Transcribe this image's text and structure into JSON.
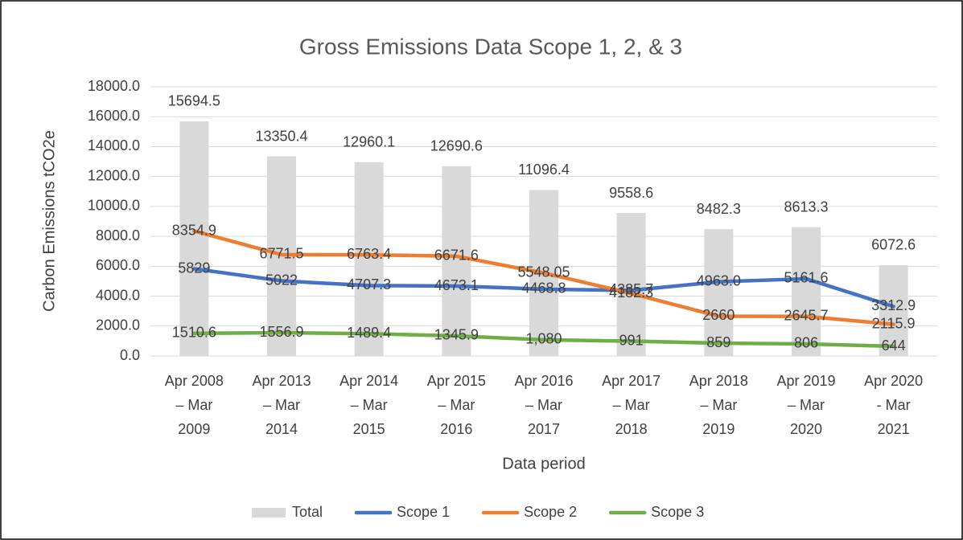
{
  "chart_data": {
    "type": "combo",
    "title": "Gross Emissions Data Scope 1, 2, & 3",
    "y_label": "Carbon Emissions tCO2e",
    "x_label": "Data period",
    "categories": [
      [
        "Apr 2008",
        "– Mar",
        "2009"
      ],
      [
        "Apr 2013",
        "– Mar",
        "2014"
      ],
      [
        "Apr 2014",
        "– Mar",
        "2015"
      ],
      [
        "Apr 2015",
        "– Mar",
        "2016"
      ],
      [
        "Apr 2016",
        "– Mar",
        "2017"
      ],
      [
        "Apr 2017",
        "– Mar",
        "2018"
      ],
      [
        "Apr 2018",
        "– Mar",
        "2019"
      ],
      [
        "Apr 2019",
        "– Mar",
        "2020"
      ],
      [
        "Apr 2020",
        "- Mar",
        "2021"
      ]
    ],
    "series": [
      {
        "name": "Total",
        "type": "bar",
        "color": "#d9d9d9",
        "values": [
          15694.5,
          13350.4,
          12960.1,
          12690.6,
          11096.4,
          9558.6,
          8482.3,
          8613.3,
          6072.6
        ],
        "value_labels": [
          "15694.5",
          "13350.4",
          "12960.1",
          "12690.6",
          "11096.4",
          "9558.6",
          "8482.3",
          "8613.3",
          "6072.6"
        ]
      },
      {
        "name": "Scope 1",
        "type": "line",
        "color": "#4472c4",
        "values": [
          5829,
          5022,
          4707.3,
          4673.1,
          4468.8,
          4385.7,
          4963.0,
          5161.6,
          3312.9
        ],
        "value_labels": [
          "5829",
          "5022",
          "4707.3",
          "4673.1",
          "4468.8",
          "4385.7",
          "4963.0",
          "5161.6",
          "3312.9"
        ]
      },
      {
        "name": "Scope 2",
        "type": "line",
        "color": "#ed7d31",
        "values": [
          8354.9,
          6771.5,
          6763.4,
          6671.6,
          5548.05,
          4182.3,
          2660,
          2645.7,
          2115.9
        ],
        "value_labels": [
          "8354.9",
          "6771.5",
          "6763.4",
          "6671.6",
          "5548.05",
          "4182.3",
          "2660",
          "2645.7",
          "2115.9"
        ]
      },
      {
        "name": "Scope 3",
        "type": "line",
        "color": "#70ad47",
        "values": [
          1510.6,
          1556.9,
          1489.4,
          1345.9,
          1080,
          991,
          859,
          806,
          644
        ],
        "value_labels": [
          "1510.6",
          "1556.9",
          "1489.4",
          "1345.9",
          "1,080",
          "991",
          "859",
          "806",
          "644"
        ]
      }
    ],
    "ylim": [
      0,
      18000
    ],
    "yticks": [
      {
        "value": 0,
        "label": "0.0"
      },
      {
        "value": 2000,
        "label": "2000.0"
      },
      {
        "value": 4000,
        "label": "4000.0"
      },
      {
        "value": 6000,
        "label": "6000.0"
      },
      {
        "value": 8000,
        "label": "8000.0"
      },
      {
        "value": 10000,
        "label": "10000.0"
      },
      {
        "value": 12000,
        "label": "12000.0"
      },
      {
        "value": 14000,
        "label": "14000.0"
      },
      {
        "value": 16000,
        "label": "16000.0"
      },
      {
        "value": 18000,
        "label": "18000.0"
      }
    ],
    "grid": true,
    "legend": "bottom"
  }
}
